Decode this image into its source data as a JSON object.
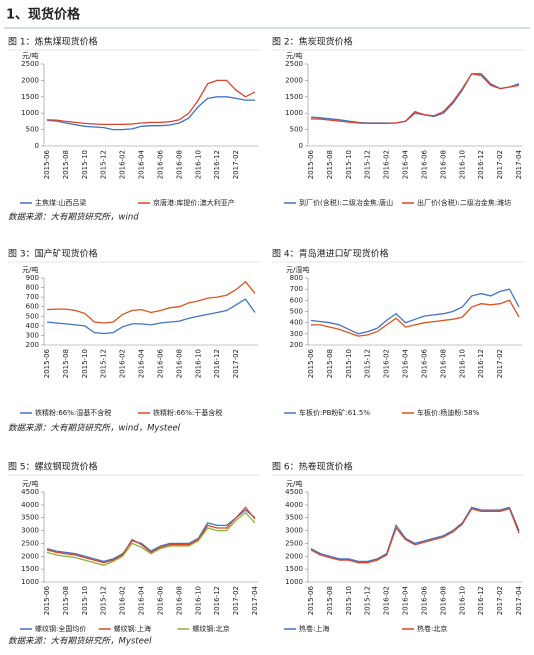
{
  "heading": "1、现货价格",
  "sources": [
    "数据来源：大有期货研究所，wind",
    "数据来源：大有期货研究所，wind，Mysteel",
    "数据来源：大有期货研究所，Mysteel"
  ],
  "chart_data": [
    {
      "type": "line",
      "title": "图 1：炼焦煤现货价格",
      "y_label": "元/吨",
      "categories": [
        "2015-06",
        null,
        "2015-08",
        null,
        "2015-10",
        null,
        "2015-12",
        null,
        "2016-02",
        null,
        "2016-04",
        null,
        "2016-06",
        null,
        "2016-08",
        null,
        "2016-10",
        null,
        "2016-12",
        null,
        "2017-02",
        null,
        null
      ],
      "ylim": [
        0,
        2500
      ],
      "yticks": [
        0,
        500,
        1000,
        1500,
        2000,
        2500
      ],
      "series": [
        {
          "name": "主焦煤:山西吕梁",
          "color": "#4472c4",
          "values": [
            780,
            760,
            700,
            650,
            600,
            580,
            560,
            500,
            500,
            520,
            600,
            620,
            620,
            640,
            700,
            850,
            1200,
            1450,
            1500,
            1500,
            1450,
            1400,
            1400
          ]
        },
        {
          "name": "京唐港:库提价:澳大利亚产",
          "color": "#d9452b",
          "values": [
            800,
            790,
            750,
            720,
            690,
            670,
            660,
            660,
            660,
            670,
            700,
            720,
            720,
            740,
            800,
            1000,
            1400,
            1900,
            2000,
            2000,
            1700,
            1500,
            1650
          ]
        }
      ]
    },
    {
      "type": "line",
      "title": "图 2：焦炭现货价格",
      "y_label": "元/吨",
      "categories": [
        "2015-06",
        null,
        "2015-08",
        null,
        "2015-10",
        null,
        "2015-12",
        null,
        "2016-02",
        null,
        "2016-04",
        null,
        "2016-06",
        null,
        "2016-08",
        null,
        "2016-10",
        null,
        "2016-12",
        null,
        "2017-02",
        null,
        "2017-04"
      ],
      "ylim": [
        0,
        2500
      ],
      "yticks": [
        0,
        500,
        1000,
        1500,
        2000,
        2500
      ],
      "series": [
        {
          "name": "到厂价(含税):二级冶金焦:唐山",
          "color": "#4472c4",
          "values": [
            880,
            860,
            830,
            800,
            760,
            720,
            700,
            700,
            700,
            700,
            750,
            1000,
            950,
            900,
            1000,
            1300,
            1700,
            2200,
            2200,
            1900,
            1750,
            1800,
            1900
          ]
        },
        {
          "name": "出厂价(含税):二级冶金焦:潍坊",
          "color": "#d9452b",
          "values": [
            830,
            820,
            790,
            760,
            730,
            700,
            690,
            690,
            690,
            700,
            760,
            1050,
            950,
            920,
            1050,
            1350,
            1750,
            2200,
            2150,
            1850,
            1750,
            1800,
            1850
          ]
        }
      ]
    },
    {
      "type": "line",
      "title": "图 3：国产矿现货价格",
      "y_label": "元/吨",
      "categories": [
        "2015-06",
        null,
        "2015-08",
        null,
        "2015-10",
        null,
        "2015-12",
        null,
        "2016-02",
        null,
        "2016-04",
        null,
        "2016-06",
        null,
        "2016-08",
        null,
        "2016-10",
        null,
        "2016-12",
        null,
        "2017-02",
        null,
        null
      ],
      "ylim": [
        200,
        900
      ],
      "yticks": [
        200,
        300,
        400,
        500,
        600,
        700,
        800,
        900
      ],
      "series": [
        {
          "name": "铁精粉:66%:湿基不含税",
          "color": "#4472c4",
          "values": [
            440,
            430,
            420,
            410,
            400,
            330,
            320,
            330,
            390,
            420,
            420,
            410,
            430,
            440,
            450,
            480,
            500,
            520,
            540,
            560,
            620,
            680,
            540
          ]
        },
        {
          "name": "铁精粉:66%:干基含税",
          "color": "#d9541e",
          "values": [
            570,
            575,
            575,
            560,
            530,
            440,
            430,
            440,
            520,
            560,
            570,
            540,
            560,
            590,
            600,
            640,
            660,
            690,
            700,
            720,
            780,
            860,
            740
          ]
        }
      ]
    },
    {
      "type": "line",
      "title": "图 4：青岛港进口矿现货价格",
      "y_label": "元/湿吨",
      "categories": [
        "2015-06",
        null,
        "2015-08",
        null,
        "2015-10",
        null,
        "2015-12",
        null,
        "2016-02",
        null,
        "2016-04",
        null,
        "2016-06",
        null,
        "2016-08",
        null,
        "2016-10",
        null,
        "2016-12",
        null,
        "2017-02",
        null,
        null
      ],
      "ylim": [
        200,
        800
      ],
      "yticks": [
        200,
        300,
        400,
        500,
        600,
        700,
        800
      ],
      "series": [
        {
          "name": "车板价:PB粉矿:61.5%",
          "color": "#4472c4",
          "values": [
            420,
            410,
            400,
            380,
            340,
            300,
            320,
            350,
            420,
            480,
            400,
            430,
            460,
            470,
            480,
            500,
            540,
            640,
            660,
            640,
            680,
            700,
            540
          ]
        },
        {
          "name": "车板价:杨迪粉:58%",
          "color": "#d9541e",
          "values": [
            380,
            380,
            360,
            340,
            310,
            280,
            290,
            320,
            380,
            440,
            360,
            380,
            400,
            410,
            420,
            430,
            450,
            540,
            570,
            560,
            570,
            600,
            450
          ]
        }
      ]
    },
    {
      "type": "line",
      "title": "图 5：螺纹钢现货价格",
      "y_label": "元/吨",
      "categories": [
        "2015-06",
        null,
        "2015-08",
        null,
        "2015-10",
        null,
        "2015-12",
        null,
        "2016-02",
        null,
        "2016-04",
        null,
        "2016-06",
        null,
        "2016-08",
        null,
        "2016-10",
        null,
        "2016-12",
        null,
        "2017-02",
        null,
        "2017-04"
      ],
      "ylim": [
        1000,
        4500
      ],
      "yticks": [
        1000,
        1500,
        2000,
        2500,
        3000,
        3500,
        4000,
        4500
      ],
      "series": [
        {
          "name": "螺纹钢:全国均价",
          "color": "#4472c4",
          "values": [
            2300,
            2200,
            2150,
            2100,
            2000,
            1900,
            1800,
            1900,
            2100,
            2600,
            2500,
            2200,
            2400,
            2500,
            2500,
            2500,
            2700,
            3300,
            3200,
            3200,
            3500,
            3800,
            3500
          ]
        },
        {
          "name": "螺纹钢:上海",
          "color": "#d9452b",
          "values": [
            2250,
            2150,
            2100,
            2050,
            1950,
            1850,
            1750,
            1850,
            2050,
            2650,
            2450,
            2150,
            2350,
            2450,
            2450,
            2450,
            2650,
            3200,
            3100,
            3100,
            3500,
            3900,
            3450
          ]
        },
        {
          "name": "螺纹钢:北京",
          "color": "#8db33a",
          "values": [
            2150,
            2050,
            2000,
            1950,
            1850,
            1750,
            1650,
            1800,
            2000,
            2500,
            2350,
            2100,
            2300,
            2400,
            2400,
            2400,
            2600,
            3100,
            3000,
            3000,
            3400,
            3700,
            3300
          ]
        }
      ]
    },
    {
      "type": "line",
      "title": "图 6：热卷现货价格",
      "y_label": "元/吨",
      "categories": [
        "2015-06",
        null,
        "2015-08",
        null,
        "2015-10",
        null,
        "2015-12",
        null,
        "2016-02",
        null,
        "2016-04",
        null,
        "2016-06",
        null,
        "2016-08",
        null,
        "2016-10",
        null,
        "2016-12",
        null,
        "2017-02",
        null,
        "2017-04"
      ],
      "ylim": [
        1000,
        4500
      ],
      "yticks": [
        1000,
        1500,
        2000,
        2500,
        3000,
        3500,
        4000,
        4500
      ],
      "series": [
        {
          "name": "热卷:上海",
          "color": "#4472c4",
          "values": [
            2300,
            2100,
            2000,
            1900,
            1900,
            1800,
            1800,
            1900,
            2100,
            3200,
            2700,
            2500,
            2600,
            2700,
            2800,
            3000,
            3300,
            3900,
            3800,
            3800,
            3800,
            3900,
            3000
          ]
        },
        {
          "name": "热卷:北京",
          "color": "#d9452b",
          "values": [
            2250,
            2050,
            1950,
            1850,
            1850,
            1750,
            1750,
            1850,
            2050,
            3100,
            2650,
            2450,
            2550,
            2650,
            2750,
            2950,
            3250,
            3850,
            3750,
            3750,
            3750,
            3850,
            2900
          ]
        }
      ]
    }
  ]
}
